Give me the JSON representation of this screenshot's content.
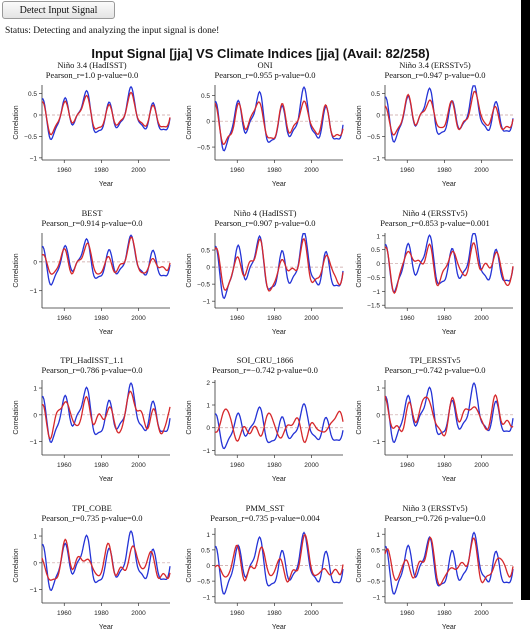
{
  "toolbar": {
    "detect_label": "Detect Input Signal"
  },
  "status": "Status: Detecting and analyzing the input signal is done!",
  "main_title": "Input Signal [jja] VS Climate Indices [jja] (Avail: 82/258)",
  "colors": {
    "input_line": "#2433d6",
    "index_line": "#d6282b",
    "zero_line": "#c8a0a0"
  },
  "panels": [
    {
      "title": "Niño 3.4 (HadISST)",
      "stats": "Pearson_r=1.0  p-value=0.0",
      "ylabel": "Correlation",
      "xlabel": "Year",
      "x_ticks": [
        "1960",
        "1980",
        "2000"
      ],
      "y_ticks": [
        "0.5",
        "0",
        "−0.5",
        "−1"
      ],
      "y_vals": [
        0.5,
        0,
        -0.5,
        -1
      ],
      "ylim": [
        -1.05,
        0.7
      ],
      "amp": 0.5,
      "corr": 1.0
    },
    {
      "title": "ONI",
      "stats": "Pearson_r=0.955  p-value=0.0",
      "ylabel": "Correlation",
      "xlabel": "Year",
      "x_ticks": [
        "1960",
        "1980",
        "2000"
      ],
      "y_ticks": [
        "0.5",
        "0",
        "−0.5"
      ],
      "y_vals": [
        0.5,
        0,
        -0.5
      ],
      "ylim": [
        -0.75,
        0.7
      ],
      "amp": 0.5,
      "corr": 0.955
    },
    {
      "title": "Niño 3.4 (ERSSTv5)",
      "stats": "Pearson_r=0.947  p-value=0.0",
      "ylabel": "Correlation",
      "xlabel": "Year",
      "x_ticks": [
        "1960",
        "1980",
        "2000"
      ],
      "y_ticks": [
        "0.5",
        "0",
        "−0.5",
        "−1"
      ],
      "y_vals": [
        0.5,
        0,
        -0.5,
        -1
      ],
      "ylim": [
        -1.05,
        0.7
      ],
      "amp": 0.55,
      "corr": 0.947
    },
    {
      "title": "BEST",
      "stats": "Pearson_r=0.914  p-value=0.0",
      "ylabel": "Correlation",
      "xlabel": "Year",
      "x_ticks": [
        "1960",
        "1980",
        "2000"
      ],
      "y_ticks": [
        "0",
        "−1"
      ],
      "y_vals": [
        0,
        -1
      ],
      "ylim": [
        -1.6,
        1.0
      ],
      "amp": 0.7,
      "corr": 0.914
    },
    {
      "title": "Niño 4 (HadISST)",
      "stats": "Pearson_r=0.907  p-value=0.0",
      "ylabel": "Correlation",
      "xlabel": "Year",
      "x_ticks": [
        "1960",
        "1980",
        "2000"
      ],
      "y_ticks": [
        "0.5",
        "0",
        "−0.5",
        "−1"
      ],
      "y_vals": [
        0.5,
        0,
        -0.5,
        -1
      ],
      "ylim": [
        -1.2,
        1.0
      ],
      "amp": 0.8,
      "corr": 0.907
    },
    {
      "title": "Niño 4 (ERSSTv5)",
      "stats": "Pearson_r=0.853  p-value=0.001",
      "ylabel": "Correlation",
      "xlabel": "Year",
      "x_ticks": [
        "1960",
        "1980",
        "2000"
      ],
      "y_ticks": [
        "1",
        "0.5",
        "0",
        "−0.5",
        "−1",
        "−1.5"
      ],
      "y_vals": [
        1,
        0.5,
        0,
        -0.5,
        -1,
        -1.5
      ],
      "ylim": [
        -1.6,
        1.1
      ],
      "amp": 0.9,
      "corr": 0.853
    },
    {
      "title": "TPI_HadISST_1.1",
      "stats": "Pearson_r=0.786  p-value=0.0",
      "ylabel": "Correlation",
      "xlabel": "Year",
      "x_ticks": [
        "1960",
        "1980",
        "2000"
      ],
      "y_ticks": [
        "1",
        "0",
        "−1"
      ],
      "y_vals": [
        1,
        0,
        -1
      ],
      "ylim": [
        -1.5,
        1.3
      ],
      "amp": 0.9,
      "corr": 0.786
    },
    {
      "title": "SOI_CRU_1866",
      "stats": "Pearson_r=−0.742  p-value=0.0",
      "ylabel": "Correlation",
      "xlabel": "Year",
      "x_ticks": [
        "1960",
        "1980",
        "2000"
      ],
      "y_ticks": [
        "2",
        "1",
        "0",
        "−1"
      ],
      "y_vals": [
        2,
        1,
        0,
        -1
      ],
      "ylim": [
        -1.2,
        2.1
      ],
      "amp": 0.8,
      "corr": -0.742
    },
    {
      "title": "TPI_ERSSTv5",
      "stats": "Pearson_r=0.742  p-value=0.0",
      "ylabel": "Correlation",
      "xlabel": "Year",
      "x_ticks": [
        "1960",
        "1980",
        "2000"
      ],
      "y_ticks": [
        "1",
        "0",
        "−1"
      ],
      "y_vals": [
        1,
        0,
        -1
      ],
      "ylim": [
        -1.5,
        1.3
      ],
      "amp": 0.9,
      "corr": 0.742
    },
    {
      "title": "TPI_COBE",
      "stats": "Pearson_r=0.735  p-value=0.0",
      "ylabel": "Correlation",
      "xlabel": "Year",
      "x_ticks": [
        "1960",
        "1980",
        "2000"
      ],
      "y_ticks": [
        "1",
        "0",
        "−1"
      ],
      "y_vals": [
        1,
        0,
        -1
      ],
      "ylim": [
        -1.5,
        1.3
      ],
      "amp": 0.9,
      "corr": 0.735
    },
    {
      "title": "PMM_SST",
      "stats": "Pearson_r=0.735  p-value=0.004",
      "ylabel": "Correlation",
      "xlabel": "Year",
      "x_ticks": [
        "1960",
        "1980",
        "2000"
      ],
      "y_ticks": [
        "1",
        "0.5",
        "0",
        "−0.5",
        "−1"
      ],
      "y_vals": [
        1,
        0.5,
        0,
        -0.5,
        -1
      ],
      "ylim": [
        -1.2,
        1.2
      ],
      "amp": 0.8,
      "corr": 0.735
    },
    {
      "title": "Niño 3 (ERSSTv5)",
      "stats": "Pearson_r=0.726  p-value=0.0",
      "ylabel": "Correlation",
      "xlabel": "Year",
      "x_ticks": [
        "1960",
        "1980",
        "2000"
      ],
      "y_ticks": [
        "1",
        "0.5",
        "0",
        "−0.5",
        "−1"
      ],
      "y_vals": [
        1,
        0.5,
        0,
        -0.5,
        -1
      ],
      "ylim": [
        -1.2,
        1.2
      ],
      "amp": 0.8,
      "corr": 0.726
    }
  ]
}
